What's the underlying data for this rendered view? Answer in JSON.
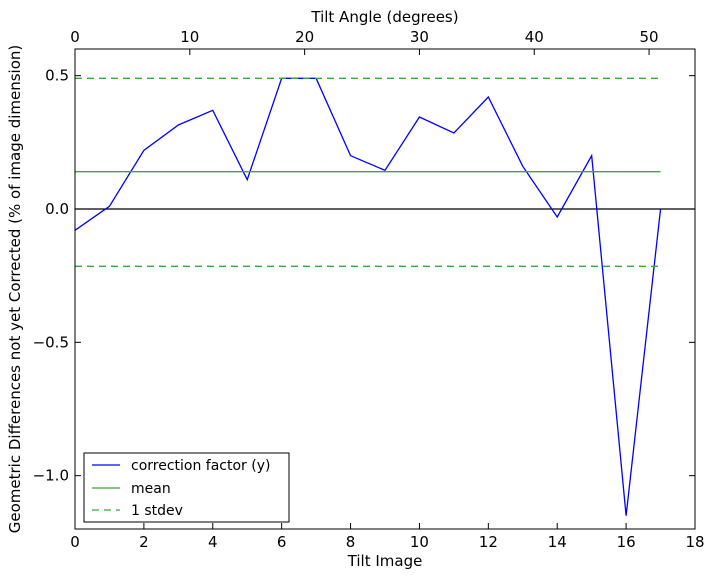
{
  "chart_data": {
    "type": "line",
    "xlabel": "Tilt Image",
    "ylabel": "Geometric Differences not yet Corrected (% of image dimension)",
    "top_xlabel": "Tilt Angle (degrees)",
    "xlim": [
      0,
      18
    ],
    "ylim": [
      -1.2,
      0.6
    ],
    "xticks": [
      0,
      2,
      4,
      6,
      8,
      10,
      12,
      14,
      16,
      18
    ],
    "xtick_labels": [
      "0",
      "2",
      "4",
      "6",
      "8",
      "10",
      "12",
      "14",
      "16",
      "18"
    ],
    "yticks": [
      0.5,
      0.0,
      -0.5,
      -1.0
    ],
    "ytick_labels": [
      "0.5",
      "0.0",
      "−0.5",
      "−1.0"
    ],
    "top_xlim": [
      0,
      54
    ],
    "top_xticks": [
      0,
      10,
      20,
      30,
      40,
      50
    ],
    "top_xtick_labels": [
      "0",
      "10",
      "20",
      "30",
      "40",
      "50"
    ],
    "grid": false,
    "legend_position": "lower-left",
    "zero_line": {
      "y": 0.0,
      "color": "#000000"
    },
    "series": [
      {
        "name": "correction factor (y)",
        "color": "#0000ff",
        "style": "solid",
        "x": [
          0,
          1,
          2,
          3,
          4,
          5,
          6,
          7,
          8,
          9,
          10,
          11,
          12,
          13,
          14,
          15,
          16,
          17
        ],
        "y": [
          -0.08,
          0.01,
          0.22,
          0.315,
          0.37,
          0.11,
          0.49,
          0.49,
          0.2,
          0.145,
          0.345,
          0.285,
          0.42,
          0.16,
          -0.03,
          0.2,
          -1.15,
          0.0
        ]
      },
      {
        "name": "mean",
        "color": "#3aa83a",
        "style": "solid",
        "x": [
          0,
          17
        ],
        "y": [
          0.14,
          0.14
        ]
      },
      {
        "name": "1 stdev",
        "color": "#3aa83a",
        "style": "dashed",
        "x": [
          0,
          17
        ],
        "y": [
          0.49,
          0.49
        ]
      },
      {
        "name": "1 stdev lower",
        "color": "#3aa83a",
        "style": "dashed",
        "x": [
          0,
          17
        ],
        "y": [
          -0.215,
          -0.215
        ]
      }
    ],
    "legend": [
      {
        "label": "correction factor (y)",
        "color": "#0000ff",
        "style": "solid"
      },
      {
        "label": "mean",
        "color": "#3aa83a",
        "style": "solid"
      },
      {
        "label": "1 stdev",
        "color": "#3aa83a",
        "style": "dashed"
      }
    ]
  }
}
